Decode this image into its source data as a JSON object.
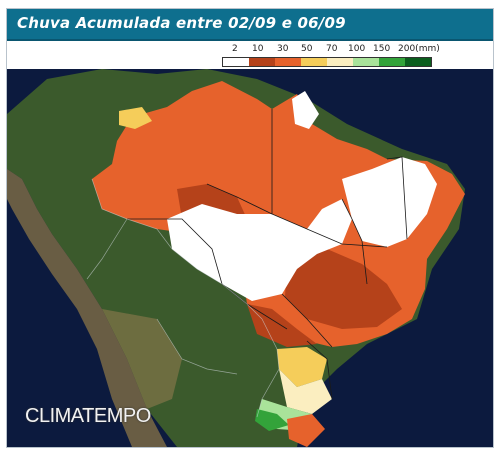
{
  "title": "Chuva Acumulada entre 02/09 e 06/09",
  "legend": {
    "labels": [
      "2",
      "10",
      "30",
      "50",
      "70",
      "100",
      "150",
      "200(mm)"
    ],
    "colors": [
      "#ffffff",
      "#b5421a",
      "#e6622c",
      "#f5cd5a",
      "#fbeec0",
      "#a9e39a",
      "#33a33a",
      "#0b5e1e"
    ]
  },
  "watermark": "CLIMATEMPO"
}
